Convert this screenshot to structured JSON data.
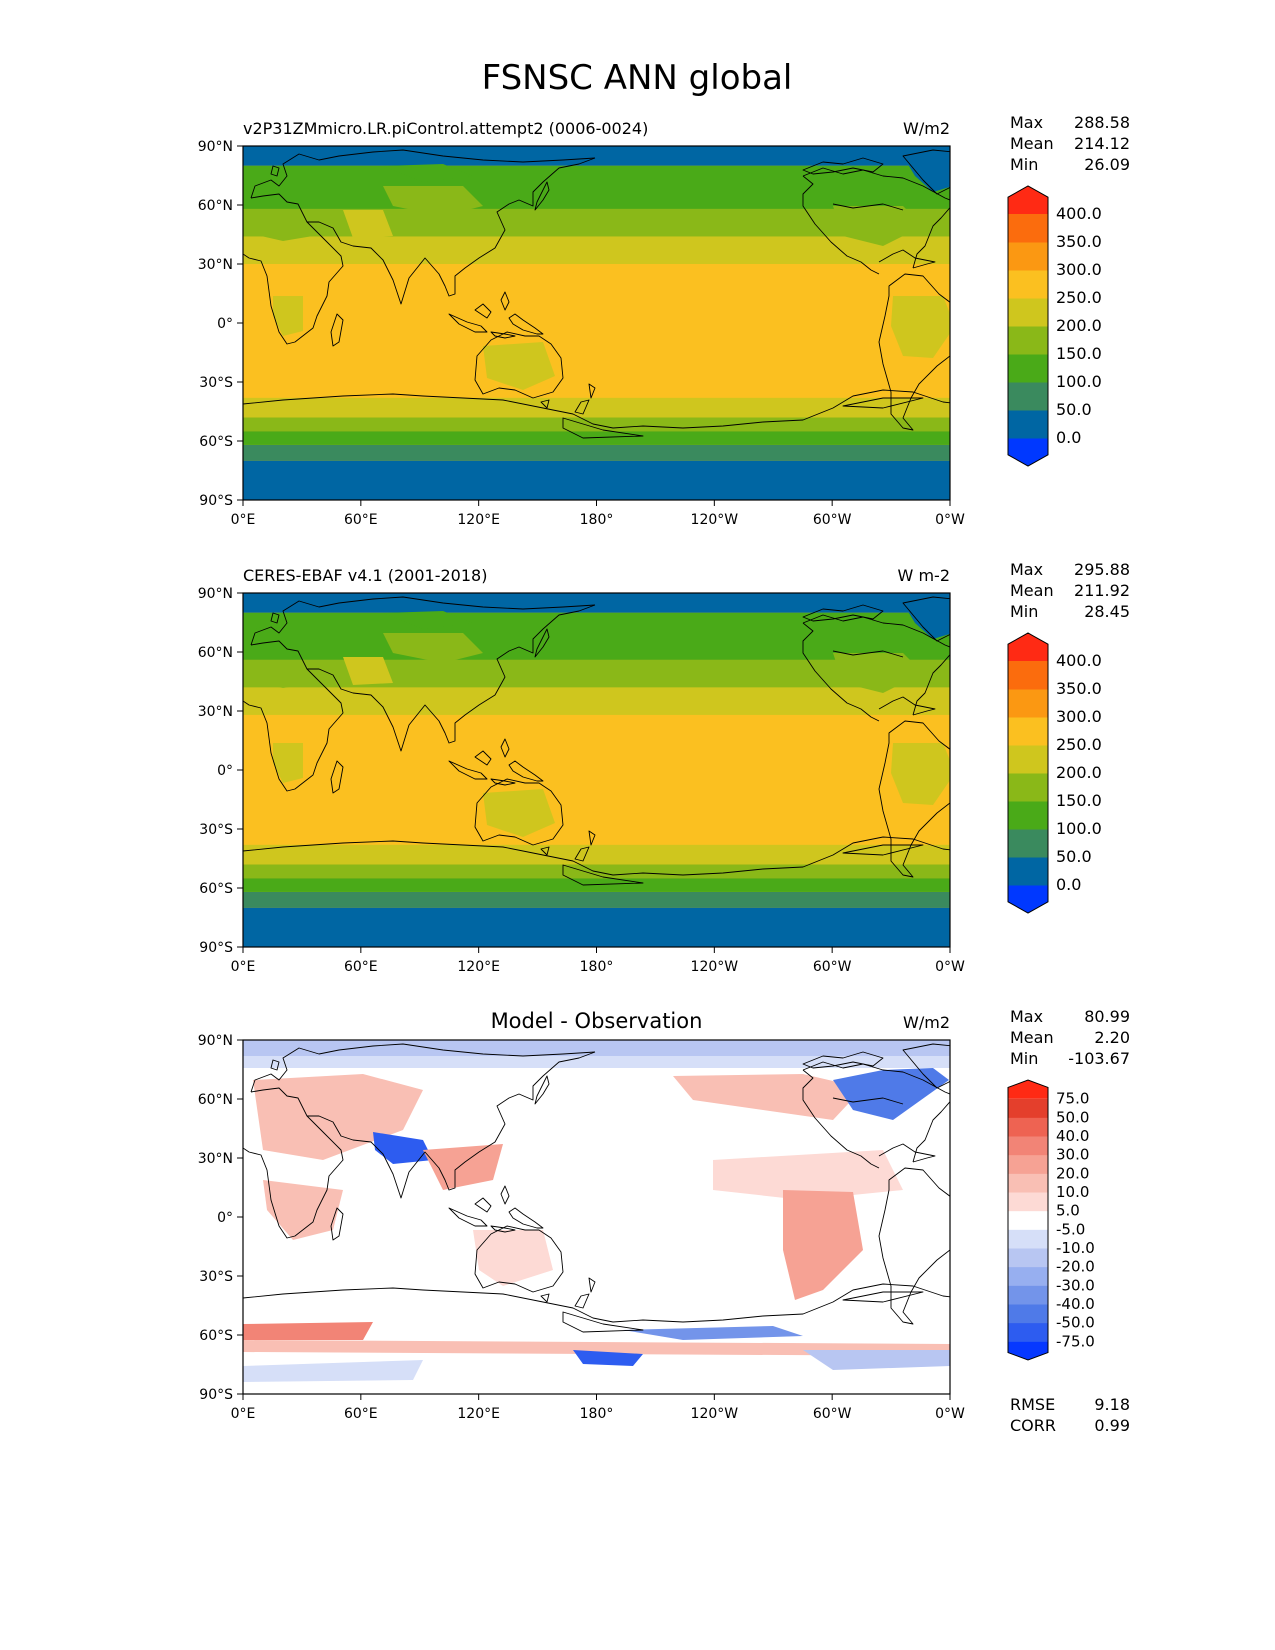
{
  "figure_title": "FSNSC ANN global",
  "lat_ticks": [
    "90°N",
    "60°N",
    "30°N",
    "0°",
    "30°S",
    "60°S",
    "90°S"
  ],
  "lon_ticks": [
    "0°E",
    "60°E",
    "120°E",
    "180°",
    "120°W",
    "60°W",
    "0°W"
  ],
  "colors": {
    "abs_levels": [
      "#0038ff",
      "#0066a3",
      "#3a8a5e",
      "#4aaa18",
      "#8ab818",
      "#cfc61e",
      "#fbc020",
      "#fb9812",
      "#fb6c0d",
      "#ff2a14"
    ],
    "diff_levels": [
      "#0638ff",
      "#2d5cf0",
      "#4f7ae8",
      "#7394ea",
      "#97aff0",
      "#b8c6f2",
      "#d6dff8",
      "#ffffff",
      "#fddad5",
      "#f9bfb4",
      "#f6a294",
      "#f28476",
      "#ee6352",
      "#e43f2c",
      "#ff2a14"
    ],
    "land_lines": "#000000"
  },
  "panels": [
    {
      "title_left": "v2P31ZMmicro.LR.piControl.attempt2 (0006-0024)",
      "title_center": "",
      "units": "W/m2",
      "stats": {
        "max_label": "Max",
        "max": "288.58",
        "mean_label": "Mean",
        "mean": "214.12",
        "min_label": "Min",
        "min": "26.09"
      },
      "colorbar_labels": [
        "400.0",
        "350.0",
        "300.0",
        "250.0",
        "200.0",
        "150.0",
        "100.0",
        "50.0",
        "0.0"
      ]
    },
    {
      "title_left": "CERES-EBAF v4.1 (2001-2018)",
      "title_center": "",
      "units": "W m-2",
      "stats": {
        "max_label": "Max",
        "max": "295.88",
        "mean_label": "Mean",
        "mean": "211.92",
        "min_label": "Min",
        "min": "28.45"
      },
      "colorbar_labels": [
        "400.0",
        "350.0",
        "300.0",
        "250.0",
        "200.0",
        "150.0",
        "100.0",
        "50.0",
        "0.0"
      ]
    },
    {
      "title_left": "",
      "title_center": "Model - Observation",
      "units": "W/m2",
      "stats": {
        "max_label": "Max",
        "max": "80.99",
        "mean_label": "Mean",
        "mean": "2.20",
        "min_label": "Min",
        "min": "-103.67"
      },
      "colorbar_labels": [
        "75.0",
        "50.0",
        "40.0",
        "30.0",
        "20.0",
        "10.0",
        "5.0",
        "-5.0",
        "-10.0",
        "-20.0",
        "-30.0",
        "-40.0",
        "-50.0",
        "-75.0"
      ],
      "rmse_label": "RMSE",
      "rmse": "9.18",
      "corr_label": "CORR",
      "corr": "0.99"
    }
  ],
  "chart_data": [
    {
      "type": "heatmap",
      "title": "v2P31ZMmicro.LR.piControl.attempt2 (0006-0024)",
      "variable": "FSNSC",
      "season": "ANN",
      "region": "global",
      "units": "W/m2",
      "xlim": [
        0,
        360
      ],
      "ylim": [
        -90,
        90
      ],
      "levels": [
        0,
        50,
        100,
        150,
        200,
        250,
        300,
        350,
        400
      ],
      "zonal_band_lat": [
        -90,
        -70,
        -62,
        -55,
        -48,
        -38,
        30,
        44,
        58,
        80,
        90
      ],
      "zonal_band_level_index": [
        1,
        2,
        3,
        4,
        5,
        6,
        5,
        4,
        3,
        1
      ],
      "max": 288.58,
      "mean": 214.12,
      "min": 26.09
    },
    {
      "type": "heatmap",
      "title": "CERES-EBAF v4.1 (2001-2018)",
      "units": "W m-2",
      "xlim": [
        0,
        360
      ],
      "ylim": [
        -90,
        90
      ],
      "levels": [
        0,
        50,
        100,
        150,
        200,
        250,
        300,
        350,
        400
      ],
      "zonal_band_lat": [
        -90,
        -70,
        -62,
        -55,
        -48,
        -38,
        28,
        42,
        56,
        80,
        90
      ],
      "zonal_band_level_index": [
        1,
        2,
        3,
        4,
        5,
        6,
        5,
        4,
        3,
        1
      ],
      "max": 295.88,
      "mean": 211.92,
      "min": 28.45
    },
    {
      "type": "heatmap",
      "title": "Model - Observation",
      "units": "W/m2",
      "xlim": [
        0,
        360
      ],
      "ylim": [
        -90,
        90
      ],
      "levels": [
        -75,
        -50,
        -40,
        -30,
        -20,
        -10,
        -5,
        5,
        10,
        20,
        30,
        40,
        50,
        75
      ],
      "max": 80.99,
      "mean": 2.2,
      "min": -103.67,
      "rmse": 9.18,
      "corr": 0.99
    }
  ]
}
